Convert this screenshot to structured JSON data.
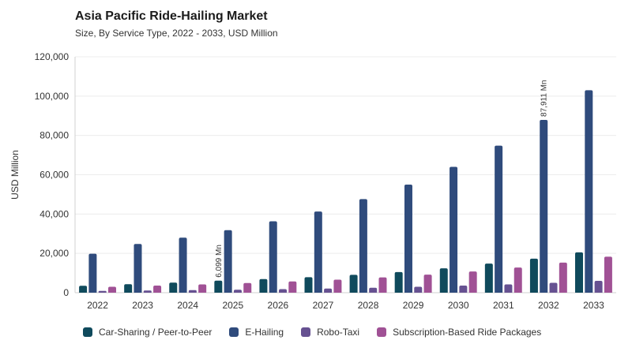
{
  "chart_data": {
    "type": "bar",
    "title": "Asia Pacific Ride-Hailing Market",
    "subtitle": "Size, By Service Type, 2022 - 2033, USD Million",
    "xlabel": "",
    "ylabel": "USD Million",
    "ylim": [
      0,
      120000
    ],
    "yticks": [
      "0",
      "20,000",
      "40,000",
      "60,000",
      "80,000",
      "100,000",
      "120,000"
    ],
    "categories": [
      "2022",
      "2023",
      "2024",
      "2025",
      "2026",
      "2027",
      "2028",
      "2029",
      "2030",
      "2031",
      "2032",
      "2033"
    ],
    "grid": true,
    "legend_position": "bottom",
    "series": [
      {
        "name": "Car-Sharing / Peer-to-Peer",
        "color": "#0f4a5c",
        "values": [
          3500,
          4300,
          5100,
          6099,
          6900,
          7900,
          9100,
          10500,
          12400,
          14800,
          17300,
          20500
        ]
      },
      {
        "name": "E-Hailing",
        "color": "#2f4b7c",
        "values": [
          19800,
          24800,
          28000,
          31800,
          36300,
          41300,
          47600,
          55000,
          64000,
          74800,
          87911,
          103000
        ]
      },
      {
        "name": "Robo-Taxi",
        "color": "#665191",
        "values": [
          900,
          1100,
          1300,
          1500,
          1800,
          2100,
          2500,
          3000,
          3600,
          4200,
          5000,
          6000
        ]
      },
      {
        "name": "Subscription-Based Ride Packages",
        "color": "#a05195",
        "values": [
          3000,
          3600,
          4200,
          4900,
          5700,
          6600,
          7800,
          9200,
          10800,
          12800,
          15300,
          18300
        ]
      }
    ],
    "annotations": [
      {
        "series": 0,
        "category": "2025",
        "text": "6,099 Mn"
      },
      {
        "series": 1,
        "category": "2032",
        "text": "87,911 Mn"
      }
    ]
  }
}
